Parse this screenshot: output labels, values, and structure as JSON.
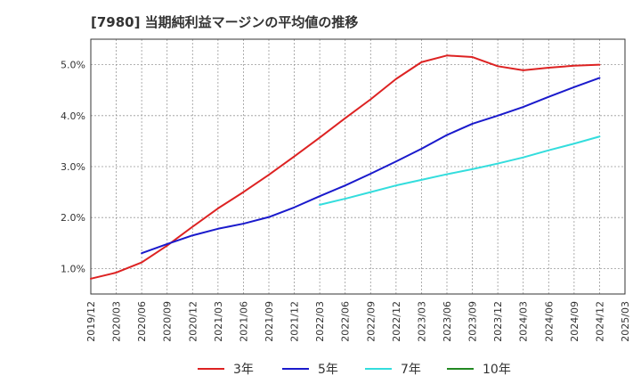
{
  "title": "[7980]  当期純利益マージンの平均値の推移",
  "chart_data": {
    "type": "line",
    "title": "[7980]  当期純利益マージンの平均値の推移",
    "xlabel": "",
    "ylabel": "",
    "x_ticks": [
      "2019/12",
      "2020/03",
      "2020/06",
      "2020/09",
      "2020/12",
      "2021/03",
      "2021/06",
      "2021/09",
      "2021/12",
      "2022/03",
      "2022/06",
      "2022/09",
      "2022/12",
      "2023/03",
      "2023/06",
      "2023/09",
      "2023/12",
      "2024/03",
      "2024/06",
      "2024/09",
      "2024/12",
      "2025/03"
    ],
    "y_ticks": [
      "1.0%",
      "2.0%",
      "3.0%",
      "4.0%",
      "5.0%"
    ],
    "ylim": [
      0.5,
      5.5
    ],
    "grid": true,
    "legend_position": "bottom",
    "series": [
      {
        "name": "3年",
        "color": "#dd2222",
        "x": [
          "2019/12",
          "2020/03",
          "2020/06",
          "2020/09",
          "2020/12",
          "2021/03",
          "2021/06",
          "2021/09",
          "2021/12",
          "2022/03",
          "2022/06",
          "2022/09",
          "2022/12",
          "2023/03",
          "2023/06",
          "2023/09",
          "2023/12",
          "2024/03",
          "2024/06",
          "2024/09",
          "2024/12"
        ],
        "values": [
          0.8,
          0.92,
          1.12,
          1.45,
          1.82,
          2.18,
          2.5,
          2.84,
          3.2,
          3.57,
          3.95,
          4.32,
          4.72,
          5.05,
          5.18,
          5.15,
          4.97,
          4.89,
          4.94,
          4.98,
          5.0
        ]
      },
      {
        "name": "5年",
        "color": "#1a1acc",
        "x": [
          "2020/06",
          "2020/09",
          "2020/12",
          "2021/03",
          "2021/06",
          "2021/09",
          "2021/12",
          "2022/03",
          "2022/06",
          "2022/09",
          "2022/12",
          "2023/03",
          "2023/06",
          "2023/09",
          "2023/12",
          "2024/03",
          "2024/06",
          "2024/09",
          "2024/12"
        ],
        "values": [
          1.3,
          1.48,
          1.65,
          1.78,
          1.88,
          2.01,
          2.2,
          2.42,
          2.63,
          2.86,
          3.1,
          3.35,
          3.62,
          3.84,
          4.0,
          4.17,
          4.37,
          4.56,
          4.74
        ]
      },
      {
        "name": "7年",
        "color": "#33dddd",
        "x": [
          "2022/03",
          "2022/06",
          "2022/09",
          "2022/12",
          "2023/03",
          "2023/06",
          "2023/09",
          "2023/12",
          "2024/03",
          "2024/06",
          "2024/09",
          "2024/12"
        ],
        "values": [
          2.25,
          2.37,
          2.5,
          2.63,
          2.74,
          2.85,
          2.95,
          3.06,
          3.18,
          3.32,
          3.45,
          3.59
        ]
      },
      {
        "name": "10年",
        "color": "#228822",
        "x": [],
        "values": []
      }
    ]
  }
}
